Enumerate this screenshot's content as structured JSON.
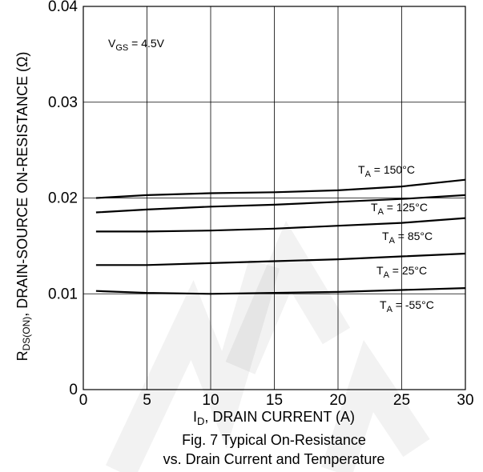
{
  "chart_data": {
    "type": "line",
    "xlabel_main": "I",
    "xlabel_sub": "D",
    "xlabel_rest": ", DRAIN CURRENT (A)",
    "ylabel_main": "R",
    "ylabel_sub": "DS(ON)",
    "ylabel_rest": ", DRAIN-SOURCE ON-RESISTANCE (Ω)",
    "caption_line1": "Fig. 7 Typical On-Resistance",
    "caption_line2": "vs. Drain Current and Temperature",
    "xlim": [
      0,
      30
    ],
    "ylim": [
      0,
      0.04
    ],
    "x_ticks": [
      "0",
      "5",
      "10",
      "15",
      "20",
      "25",
      "30"
    ],
    "y_ticks": [
      "0",
      "0.01",
      "0.02",
      "0.03",
      "0.04"
    ],
    "grid": true,
    "condition": {
      "main": "V",
      "sub": "GS",
      "rest": " = 4.5V"
    },
    "series": [
      {
        "name": "T_A = 150°C",
        "label_main": "T",
        "label_sub": "A",
        "label_rest": " = 150°C",
        "x": [
          1,
          5,
          10,
          15,
          20,
          25,
          30
        ],
        "y": [
          0.02,
          0.0203,
          0.0205,
          0.0206,
          0.0208,
          0.0212,
          0.0219
        ]
      },
      {
        "name": "T_A = 125°C",
        "label_main": "T",
        "label_sub": "A",
        "label_rest": " = 125°C",
        "x": [
          1,
          5,
          10,
          15,
          20,
          25,
          30
        ],
        "y": [
          0.0185,
          0.0188,
          0.0191,
          0.0193,
          0.0196,
          0.0199,
          0.0203
        ]
      },
      {
        "name": "T_A = 85°C",
        "label_main": "T",
        "label_sub": "A",
        "label_rest": " = 85°C",
        "x": [
          1,
          5,
          10,
          15,
          20,
          25,
          30
        ],
        "y": [
          0.0165,
          0.0165,
          0.0166,
          0.0168,
          0.0171,
          0.0174,
          0.0179
        ]
      },
      {
        "name": "T_A = 25°C",
        "label_main": "T",
        "label_sub": "A",
        "label_rest": " = 25°C",
        "x": [
          1,
          5,
          10,
          15,
          20,
          25,
          30
        ],
        "y": [
          0.013,
          0.013,
          0.0132,
          0.0134,
          0.0136,
          0.0139,
          0.0142
        ]
      },
      {
        "name": "T_A = -55°C",
        "label_main": "T",
        "label_sub": "A",
        "label_rest": " = -55°C",
        "x": [
          1,
          5,
          10,
          15,
          20,
          25,
          30
        ],
        "y": [
          0.0103,
          0.0101,
          0.01,
          0.0101,
          0.0102,
          0.0104,
          0.0106
        ]
      }
    ],
    "watermark": "NOT RECOMMENDED"
  }
}
